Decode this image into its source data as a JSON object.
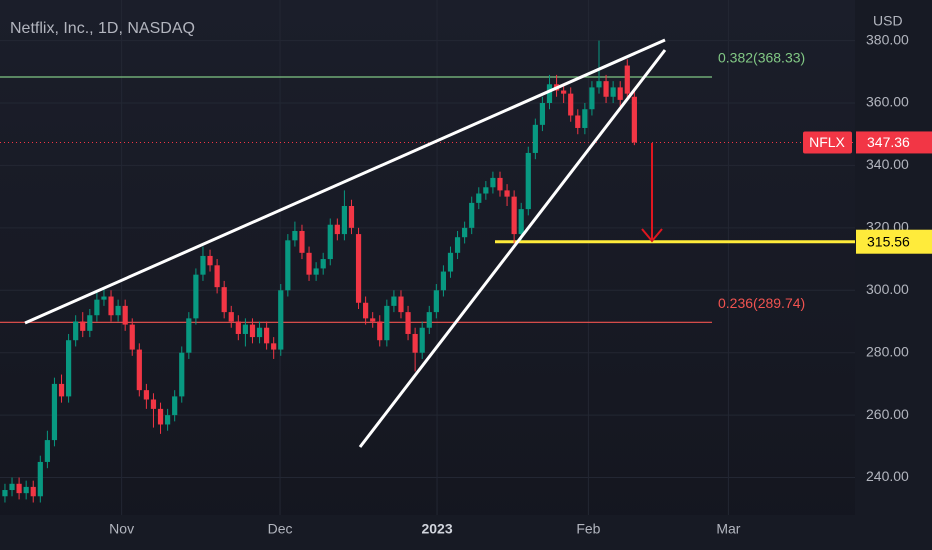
{
  "chart_data": {
    "type": "candlestick",
    "title": "Netflix, Inc., 1D, NASDAQ",
    "y_axis_label": "USD",
    "series": [
      {
        "name": "NFLX",
        "up_color": "#089981",
        "down_color": "#f23645",
        "open": [
          234,
          236,
          238,
          235,
          237,
          234,
          245,
          252,
          270,
          266,
          284,
          290,
          287,
          292,
          297,
          298,
          292,
          295,
          289,
          281,
          268,
          265,
          262,
          257,
          260,
          266,
          280,
          291,
          305,
          311,
          308,
          301,
          293,
          290,
          286,
          289,
          285,
          288,
          283,
          281,
          300,
          316,
          319,
          312,
          305,
          307,
          310,
          321,
          318,
          327,
          318,
          296,
          291,
          290,
          284,
          295,
          298,
          293,
          286,
          280,
          288,
          293,
          300,
          306,
          312,
          317,
          320,
          328,
          331,
          333,
          336,
          332,
          330,
          318,
          326,
          344,
          353,
          360,
          366,
          364,
          363,
          356,
          352,
          358,
          365,
          367,
          362,
          365,
          372,
          362
        ],
        "high": [
          238,
          240,
          240,
          239,
          239,
          247,
          255,
          272,
          273,
          286,
          292,
          293,
          294,
          300,
          301,
          300,
          297,
          297,
          291,
          283,
          270,
          267,
          264,
          262,
          268,
          282,
          293,
          307,
          314,
          313,
          310,
          303,
          295,
          292,
          291,
          291,
          290,
          290,
          285,
          302,
          318,
          322,
          321,
          314,
          309,
          312,
          323,
          323,
          332,
          329,
          320,
          298,
          293,
          292,
          297,
          300,
          300,
          295,
          288,
          290,
          295,
          302,
          308,
          314,
          319,
          322,
          330,
          333,
          335,
          338,
          338,
          334,
          332,
          328,
          346,
          355,
          362,
          369,
          369,
          366,
          365,
          358,
          360,
          367,
          380,
          369,
          367,
          367,
          374,
          364
        ],
        "low": [
          232,
          234,
          233,
          233,
          232,
          232,
          243,
          250,
          264,
          264,
          282,
          285,
          285,
          290,
          295,
          290,
          290,
          287,
          279,
          266,
          262,
          256,
          254,
          255,
          258,
          264,
          278,
          289,
          303,
          306,
          299,
          291,
          288,
          284,
          282,
          283,
          283,
          281,
          278,
          279,
          298,
          314,
          310,
          303,
          303,
          305,
          308,
          316,
          316,
          318,
          294,
          289,
          288,
          282,
          282,
          293,
          291,
          284,
          274,
          278,
          286,
          291,
          298,
          304,
          310,
          315,
          318,
          326,
          329,
          331,
          330,
          327,
          315,
          316,
          324,
          342,
          351,
          358,
          362,
          360,
          354,
          350,
          350,
          356,
          363,
          360,
          360,
          359,
          361,
          346.5
        ],
        "close": [
          236,
          238,
          235,
          237,
          234,
          245,
          252,
          270,
          266,
          284,
          290,
          287,
          292,
          297,
          298,
          292,
          295,
          289,
          281,
          268,
          265,
          262,
          257,
          260,
          266,
          280,
          291,
          305,
          311,
          308,
          301,
          293,
          290,
          286,
          289,
          285,
          288,
          283,
          281,
          300,
          316,
          319,
          312,
          305,
          307,
          310,
          321,
          318,
          327,
          320,
          296,
          291,
          290,
          284,
          295,
          298,
          293,
          286,
          280,
          288,
          293,
          300,
          306,
          312,
          317,
          320,
          328,
          331,
          333,
          336,
          332,
          330,
          318,
          326,
          344,
          353,
          360,
          366,
          364,
          363,
          356,
          352,
          358,
          365,
          367,
          362,
          365,
          361,
          363,
          347.36
        ]
      }
    ],
    "ylim": [
      228,
      393
    ],
    "yticks": [
      {
        "value": 240,
        "label": "240.00"
      },
      {
        "value": 260,
        "label": "260.00"
      },
      {
        "value": 280,
        "label": "280.00"
      },
      {
        "value": 300,
        "label": "300.00"
      },
      {
        "value": 320,
        "label": "320.00"
      },
      {
        "value": 340,
        "label": "340.00"
      },
      {
        "value": 360,
        "label": "360.00"
      },
      {
        "value": 380,
        "label": "380.00"
      }
    ],
    "xlim": [
      -0.7,
      120.2
    ],
    "xticks": [
      {
        "value": 16.5,
        "label": "Nov"
      },
      {
        "value": 38.9,
        "label": "Dec"
      },
      {
        "value": 61.1,
        "label": "2023"
      },
      {
        "value": 82.5,
        "label": "Feb"
      },
      {
        "value": 102.3,
        "label": "Mar"
      }
    ],
    "levels": [
      {
        "label": "0.382(368.33)",
        "value": 368.33,
        "color": "#81c784"
      },
      {
        "label": "0.236(289.74)",
        "value": 289.74,
        "color": "#f05350"
      }
    ],
    "last_price": {
      "symbol": "NFLX",
      "value": 347.36,
      "color": "#f23645"
    },
    "target": {
      "value": 315.56,
      "color": "#ffeb3b"
    }
  }
}
